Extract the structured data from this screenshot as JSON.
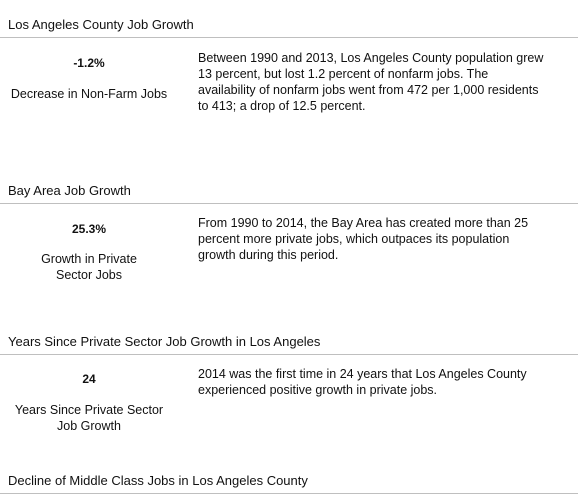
{
  "sections": [
    {
      "title": "Los Angeles County Job Growth",
      "stat_value": "-1.2%",
      "stat_label": "Decrease in Non-Farm Jobs",
      "description": "Between 1990 and 2013, Los Angeles County population grew 13 percent, but lost 1.2 percent of nonfarm jobs. The availability of nonfarm jobs went from 472 per 1,000 residents to 413; a drop of 12.5 percent."
    },
    {
      "title": "Bay Area Job Growth",
      "stat_value": "25.3%",
      "stat_label": "Growth in Private Sector Jobs",
      "description": "From 1990 to 2014, the Bay Area has created more than 25 percent more private jobs, which outpaces its population growth during this period."
    },
    {
      "title": "Years Since Private Sector Job Growth in Los Angeles",
      "stat_value": "24",
      "stat_label": "Years Since Private Sector Job Growth",
      "description": "2014 was the first time in 24 years that Los Angeles County experienced positive growth in private jobs."
    },
    {
      "title": "Decline of Middle Class Jobs in Los Angeles County"
    }
  ]
}
